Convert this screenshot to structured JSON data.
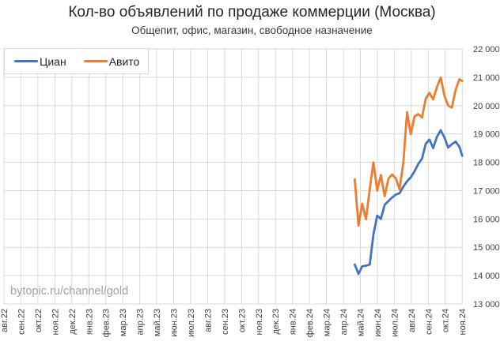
{
  "title": "Кол-во объявлений по продаже коммерции (Москва)",
  "subtitle": "Общепит, офис, магазин, свободное назначение",
  "watermark": "bytopic.ru/channel/gold",
  "chart_data": {
    "type": "line",
    "title": "Кол-во объявлений по продаже коммерции (Москва)",
    "subtitle": "Общепит, офис, магазин, свободное назначение",
    "grid": true,
    "legend_position": "top-left",
    "x_axis": {
      "categories": [
        "авг.22",
        "сен.22",
        "окт.22",
        "ноя.22",
        "дек.22",
        "янв.23",
        "фев.23",
        "мар.23",
        "апр.23",
        "май.23",
        "июн.23",
        "июл.23",
        "авг.23",
        "сен.23",
        "окт.23",
        "ноя.23",
        "дек.23",
        "янв.24",
        "фев.24",
        "мар.24",
        "апр.24",
        "май.24",
        "июн.24",
        "июл.24",
        "авг.24",
        "сен.24",
        "окт.24",
        "ноя.24"
      ],
      "labels_rotated_deg": -90
    },
    "y_axis": {
      "side": "right",
      "min": 13000,
      "max": 22000,
      "step": 1000,
      "tick_labels": [
        "22 000",
        "21 000",
        "20 000",
        "19 000",
        "18 000",
        "17 000",
        "16 000",
        "15 000",
        "14 000",
        "13 000"
      ]
    },
    "x_month_index": [
      20.67,
      20.89,
      21.11,
      21.33,
      21.55,
      21.77,
      21.99,
      22.21,
      22.43,
      22.65,
      22.87,
      23.09,
      23.31,
      23.53,
      23.75,
      23.97,
      24.19,
      24.41,
      24.63,
      24.85,
      25.07,
      25.29,
      25.51,
      25.73,
      25.95,
      26.17,
      26.39,
      26.61,
      26.83,
      27.0
    ],
    "series": [
      {
        "name": "Циан",
        "color": "#4472C4",
        "values": [
          14390,
          14060,
          14330,
          14350,
          14390,
          15450,
          16120,
          16000,
          16500,
          16630,
          16760,
          16860,
          16910,
          17140,
          17330,
          17470,
          17680,
          17940,
          18130,
          18650,
          18800,
          18500,
          18900,
          19130,
          18880,
          18520,
          18640,
          18730,
          18550,
          18230
        ]
      },
      {
        "name": "Авито",
        "color": "#ED7D31",
        "values": [
          17400,
          15760,
          16540,
          15990,
          17050,
          18000,
          17000,
          17550,
          16800,
          17420,
          17570,
          17430,
          17050,
          18000,
          19770,
          18990,
          19620,
          19700,
          19580,
          20250,
          20450,
          20220,
          20650,
          20990,
          20350,
          20000,
          19930,
          20550,
          20930,
          20870
        ]
      }
    ],
    "colors": {
      "gridline": "#d9d9d9",
      "tick_text": "#404040",
      "watermark_text": "#a3a3a3"
    }
  }
}
